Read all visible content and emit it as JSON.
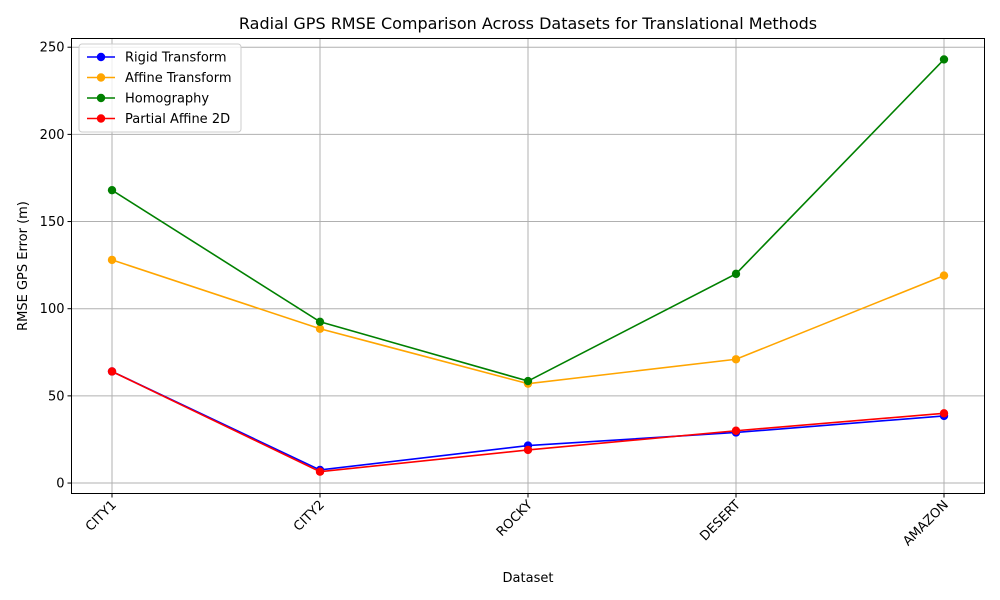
{
  "chart_data": {
    "type": "line",
    "title": "Radial GPS RMSE Comparison Across Datasets for Translational Methods",
    "xlabel": "Dataset",
    "ylabel": "RMSE GPS Error (m)",
    "categories": [
      "CITY1",
      "CITY2",
      "ROCKY",
      "DESERT",
      "AMAZON"
    ],
    "ylim": [
      -6,
      255
    ],
    "yticks": [
      0,
      50,
      100,
      150,
      200,
      250
    ],
    "grid": true,
    "legend_position": "top-left",
    "series": [
      {
        "name": "Rigid Transform",
        "color": "#0000ff",
        "values": [
          64,
          7.5,
          21.5,
          29,
          38.5
        ]
      },
      {
        "name": "Affine Transform",
        "color": "#ffa500",
        "values": [
          128,
          88.5,
          57,
          71,
          119
        ]
      },
      {
        "name": "Homography",
        "color": "#008000",
        "values": [
          168,
          92.5,
          58.5,
          120,
          243
        ]
      },
      {
        "name": "Partial Affine 2D",
        "color": "#ff0000",
        "values": [
          64,
          6.5,
          19,
          30,
          40
        ]
      }
    ]
  }
}
